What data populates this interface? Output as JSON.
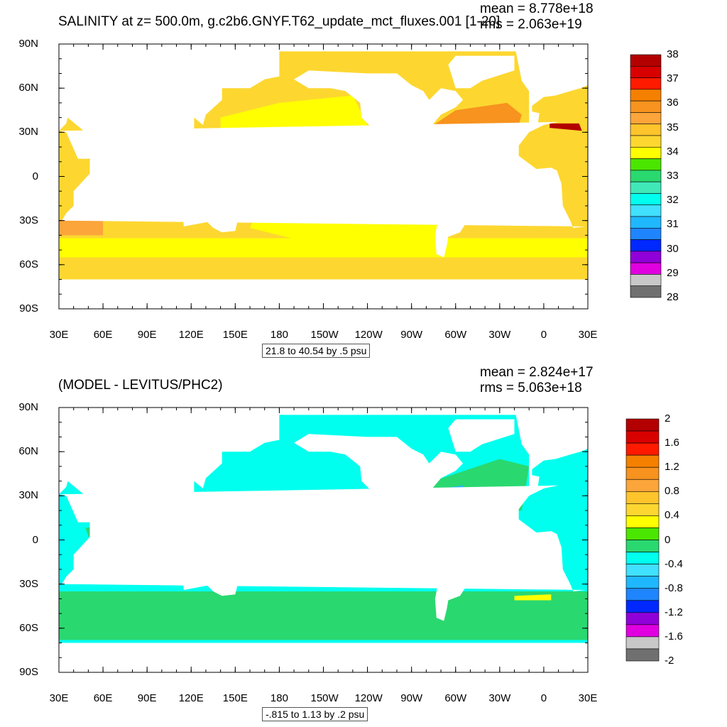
{
  "panels": [
    {
      "title": "SALINITY at z= 500.0m, g.c2b6.GNYF.T62_update_mct_fluxes.001 [1-20]",
      "mean_text": "mean = 8.778e+18",
      "rms_text": "rms = 2.063e+19",
      "caption": "21.8 to 40.54 by .5 psu",
      "colorbar_labels": [
        "38",
        "37",
        "36",
        "35",
        "34",
        "33",
        "32",
        "31",
        "30",
        "29",
        "28"
      ],
      "colorbar_colors": [
        "#b30000",
        "#d90000",
        "#ff1a00",
        "#f58000",
        "#f7931e",
        "#fba53a",
        "#fec42b",
        "#fdd730",
        "#ffff00",
        "#4be600",
        "#2ad870",
        "#40e8b8",
        "#00ffee",
        "#40e0ff",
        "#1fb8ff",
        "#1e85ff",
        "#0028ff",
        "#9000d8",
        "#e000e0",
        "#c8c8c8",
        "#707070"
      ],
      "regions": {
        "ocean_main": "#fdd730",
        "pacific_high": "#ffff00",
        "atlantic_high": "#f7931e",
        "indian_south": "#fba53a",
        "med": "#b30000",
        "southern": "#fdd730"
      }
    },
    {
      "title": "(MODEL - LEVITUS/PHC2)",
      "mean_text": "mean = 2.824e+17",
      "rms_text": "rms = 5.063e+18",
      "caption": "-.815 to 1.13 by .2 psu",
      "colorbar_labels": [
        "2",
        "1.6",
        "1.2",
        "0.8",
        "0.4",
        "0",
        "-0.4",
        "-0.8",
        "-1.2",
        "-1.6",
        "-2"
      ],
      "colorbar_colors": [
        "#b30000",
        "#d90000",
        "#ff1a00",
        "#f58000",
        "#f7931e",
        "#fba53a",
        "#fec42b",
        "#fdd730",
        "#ffff00",
        "#4be600",
        "#2ad870",
        "#00ffee",
        "#40e0ff",
        "#1fb8ff",
        "#1e85ff",
        "#0028ff",
        "#9000d8",
        "#e000e0",
        "#c8c8c8",
        "#707070"
      ],
      "regions": {
        "ocean_main": "#00ffee",
        "green": "#2ad870",
        "yellow": "#ffff00",
        "blue": "#1fb8ff"
      }
    }
  ],
  "chart_data": [
    {
      "type": "heatmap",
      "title": "SALINITY at z= 500.0m, g.c2b6.GNYF.T62_update_mct_fluxes.001 [1-20]",
      "xlabel": "",
      "ylabel": "",
      "x_tick_labels": [
        "30E",
        "60E",
        "90E",
        "120E",
        "150E",
        "180",
        "150W",
        "120W",
        "90W",
        "60W",
        "30W",
        "0",
        "30E"
      ],
      "y_tick_labels": [
        "90N",
        "60N",
        "30N",
        "0",
        "30S",
        "60S",
        "90S"
      ],
      "xlim": [
        30,
        390
      ],
      "ylim": [
        -90,
        90
      ],
      "colorbar_levels": [
        28,
        29,
        30,
        31,
        32,
        33,
        34,
        35,
        36,
        37,
        38
      ],
      "stats": {
        "mean": 8.778e+18,
        "rms": 2.063e+19
      },
      "contour_info": "21.8 to 40.54 by .5 psu"
    },
    {
      "type": "heatmap",
      "title": "(MODEL - LEVITUS/PHC2)",
      "xlabel": "",
      "ylabel": "",
      "x_tick_labels": [
        "30E",
        "60E",
        "90E",
        "120E",
        "150E",
        "180",
        "150W",
        "120W",
        "90W",
        "60W",
        "30W",
        "0",
        "30E"
      ],
      "y_tick_labels": [
        "90N",
        "60N",
        "30N",
        "0",
        "30S",
        "60S",
        "90S"
      ],
      "xlim": [
        30,
        390
      ],
      "ylim": [
        -90,
        90
      ],
      "colorbar_levels": [
        -2,
        -1.6,
        -1.2,
        -0.8,
        -0.4,
        0,
        0.4,
        0.8,
        1.2,
        1.6,
        2
      ],
      "stats": {
        "mean": 2.824e+17,
        "rms": 5.063e+18
      },
      "contour_info": "-.815 to 1.13 by .2 psu"
    }
  ]
}
